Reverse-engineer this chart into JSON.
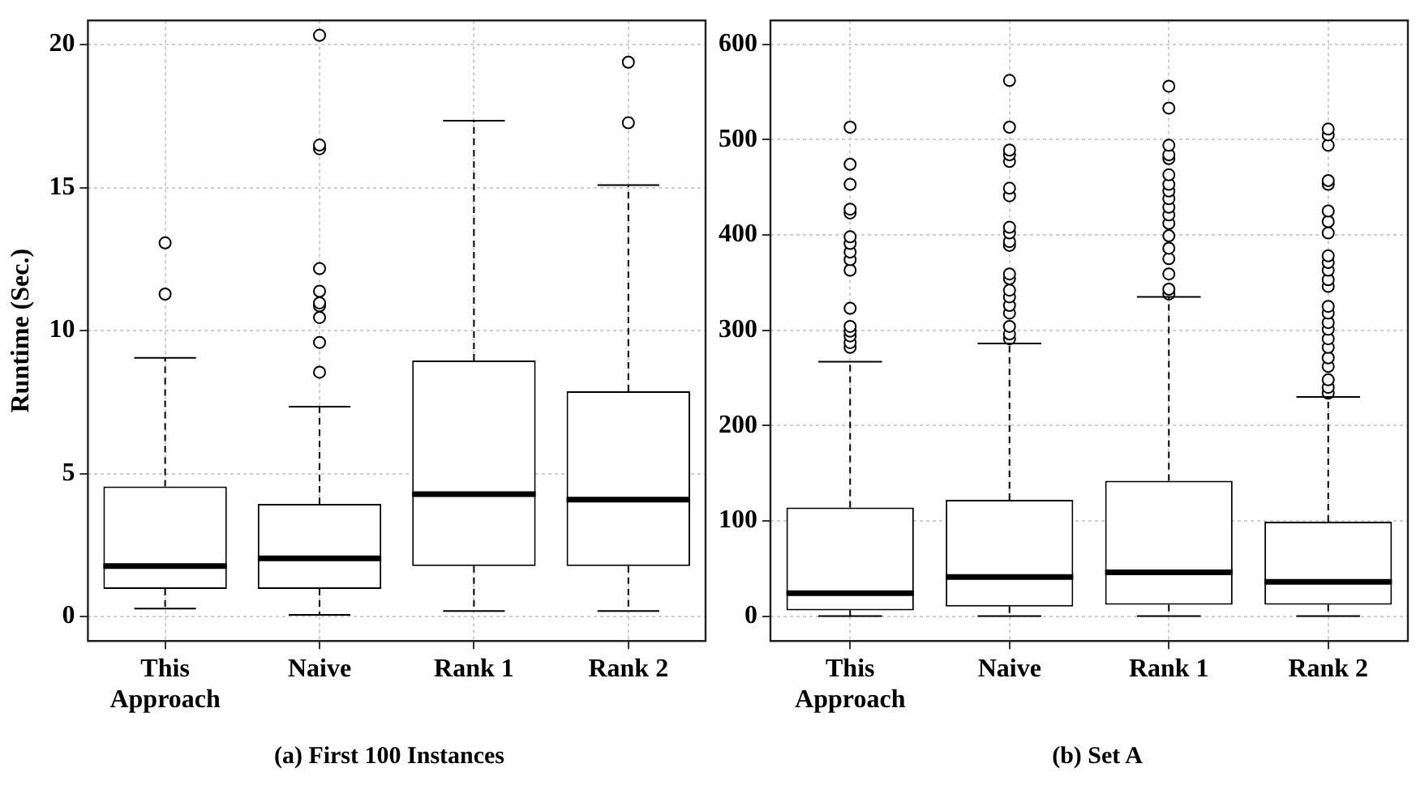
{
  "chart_data": [
    {
      "type": "box",
      "title": "(a) First 100 Instances",
      "ylabel": "Runtime (Sec.)",
      "categories": [
        "This Approach",
        "Naive",
        "Rank 1",
        "Rank 2"
      ],
      "ylim": [
        -0.85,
        20.85
      ],
      "yticks": [
        0,
        5,
        10,
        15,
        20
      ],
      "grid": true,
      "marker": "circle",
      "boxes": [
        {
          "low": 0.28,
          "q1": 0.97,
          "median": 1.77,
          "q3": 4.55,
          "high": 9.05,
          "outliers": [
            11.28,
            13.07
          ]
        },
        {
          "low": 0.06,
          "q1": 0.97,
          "median": 2.04,
          "q3": 3.94,
          "high": 7.34,
          "outliers": [
            8.55,
            9.59,
            10.46,
            10.87,
            10.97,
            11.38,
            12.17,
            16.36,
            16.49,
            20.33
          ]
        },
        {
          "low": 0.2,
          "q1": 1.77,
          "median": 4.28,
          "q3": 8.96,
          "high": 17.34
        },
        {
          "low": 0.2,
          "q1": 1.77,
          "median": 4.09,
          "q3": 7.88,
          "high": 15.09,
          "outliers": [
            17.27,
            19.39
          ]
        }
      ]
    },
    {
      "type": "box",
      "title": "(b) Set A",
      "categories": [
        "This Approach",
        "Naive",
        "Rank 1",
        "Rank 2"
      ],
      "ylim": [
        -26,
        625
      ],
      "yticks": [
        0,
        100,
        200,
        300,
        400,
        500,
        600
      ],
      "grid": true,
      "marker": "circle",
      "boxes": [
        {
          "low": 0,
          "q1": 6,
          "median": 24,
          "q3": 114,
          "high": 267,
          "outliers": [
            282,
            287,
            294,
            299,
            304,
            323,
            363,
            374,
            382,
            391,
            398,
            423,
            427,
            453,
            474,
            513
          ]
        },
        {
          "low": 0,
          "q1": 10,
          "median": 41,
          "q3": 122,
          "high": 286,
          "outliers": [
            291,
            296,
            304,
            318,
            326,
            335,
            342,
            354,
            359,
            389,
            393,
            402,
            408,
            441,
            449,
            477,
            484,
            489,
            513,
            562
          ]
        },
        {
          "low": 0,
          "q1": 12,
          "median": 46,
          "q3": 142,
          "high": 335,
          "outliers": [
            338,
            343,
            359,
            375,
            386,
            399,
            412,
            421,
            429,
            438,
            446,
            453,
            463,
            480,
            484,
            494,
            533,
            556
          ]
        },
        {
          "low": 0,
          "q1": 12,
          "median": 36,
          "q3": 99,
          "high": 230,
          "outliers": [
            234,
            240,
            248,
            262,
            271,
            282,
            291,
            301,
            308,
            318,
            325,
            346,
            353,
            363,
            371,
            378,
            402,
            414,
            425,
            453,
            457,
            494,
            505,
            511
          ]
        }
      ]
    }
  ]
}
